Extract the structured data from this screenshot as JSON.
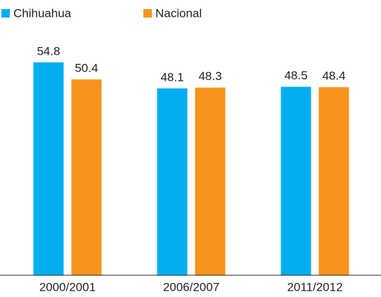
{
  "chart_data": {
    "type": "bar",
    "categories": [
      "2000/2001",
      "2006/2007",
      "2011/2012"
    ],
    "series": [
      {
        "name": "Chihuahua",
        "color": "#00aeef",
        "values": [
          54.8,
          48.1,
          48.5
        ]
      },
      {
        "name": "Nacional",
        "color": "#f7941d",
        "values": [
          50.4,
          48.3,
          48.4
        ]
      }
    ],
    "ylim": [
      0,
      60
    ],
    "legend": "top-left"
  }
}
